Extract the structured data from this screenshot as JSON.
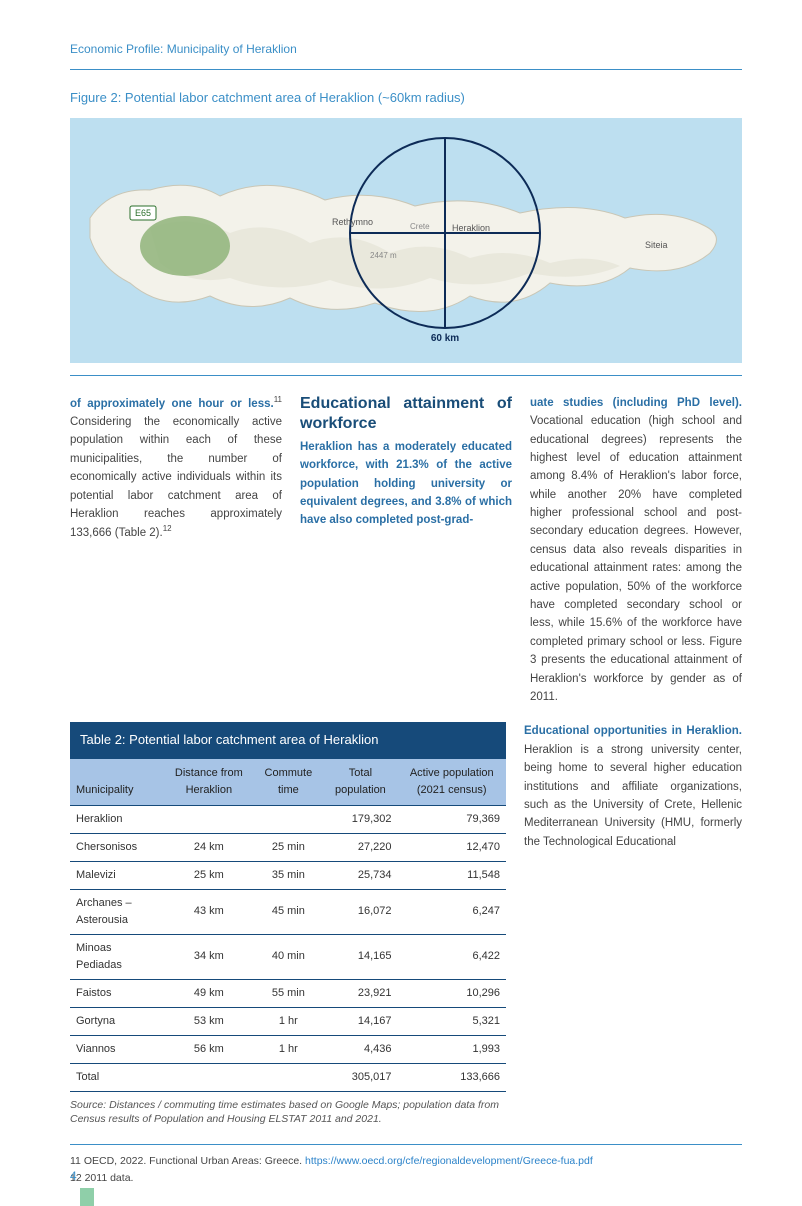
{
  "header": {
    "title": "Economic Profile: Municipality of Heraklion"
  },
  "figure": {
    "title": "Figure 2: Potential labor catchment area of Heraklion (~60km radius)",
    "map": {
      "background_color": "#bddff0",
      "land_color": "#f3f2ea",
      "land_stroke": "#c9c6b5",
      "mountain_color": "#d8dccd",
      "park_color": "#8fb47a",
      "ring_stroke": "#0d2b57",
      "labels": {
        "rethymno": "Rethymno",
        "heraklion": "Heraklion",
        "sitia": "Siteia",
        "crete": "Crete",
        "km": "60 km",
        "elev": "2447 m",
        "road": "E65"
      }
    }
  },
  "text": {
    "col1_lead": "of approximately one hour or less.",
    "col1_sup": "11",
    "col1_body": " Considering the economically active population within each of these municipalities, the number of economically active individuals within its potential labor catchment area of Heraklion reaches approximately 133,666 (Table 2).",
    "col1_sup2": "12",
    "col2_heading": "Educational attainment of workforce",
    "col2_lead": "Heraklion has a moderately educated workforce, with 21.3% of the active population holding university or equivalent degrees, and 3.8% of which have also completed post-grad-",
    "col3_lead": "uate studies (including PhD level).",
    "col3_body": " Vocational education (high school and educational degrees) represents the highest level of education attainment among 8.4% of Heraklion's labor force, while another 20% have completed higher professional school and post-secondary education degrees. However, census data also reveals disparities in educational attainment rates: among the active population, 50% of the workforce have completed secondary school or less, while 15.6% of the workforce have completed primary school or less. Figure 3 presents the educational attainment of Heraklion's workforce by gender as of 2011.",
    "col3_subhead": "Educational opportunities in Heraklion.",
    "col3_body2": " Heraklion is a strong university center, being home to several higher education institutions and affiliate organizations, such as the University of Crete, Hellenic Mediterranean University (HMU, formerly the Technological Educational"
  },
  "table": {
    "title": "Table 2: Potential labor catchment area of Heraklion",
    "columns": [
      "Municipality",
      "Distance from Heraklion",
      "Commute time",
      "Total population",
      "Active population (2021 census)"
    ],
    "rows": [
      [
        "Heraklion",
        "",
        "",
        "179,302",
        "79,369"
      ],
      [
        "Chersonisos",
        "24 km",
        "25 min",
        "27,220",
        "12,470"
      ],
      [
        "Malevizi",
        "25 km",
        "35 min",
        "25,734",
        "11,548"
      ],
      [
        "Archanes – Asterousia",
        "43 km",
        "45 min",
        "16,072",
        "6,247"
      ],
      [
        "Minoas Pediadas",
        "34 km",
        "40 min",
        "14,165",
        "6,422"
      ],
      [
        "Faistos",
        "49 km",
        "55 min",
        "23,921",
        "10,296"
      ],
      [
        "Gortyna",
        "53 km",
        "1 hr",
        "14,167",
        "5,321"
      ],
      [
        "Viannos",
        "56 km",
        "1 hr",
        "4,436",
        "1,993"
      ],
      [
        "Total",
        "",
        "",
        "305,017",
        "133,666"
      ]
    ],
    "source_label": "Source:",
    "source_text": " Distances / commuting time estimates based on Google Maps; population data from Census results of Population and Housing ELSTAT 2011 and 2021.",
    "header_bg": "#a7c4e6",
    "title_bg": "#164a7a",
    "border_color": "#164a7a"
  },
  "footnotes": {
    "fn11_text": "11 OECD, 2022. Functional Urban Areas: Greece. ",
    "fn11_link": "https://www.oecd.org/cfe/regionaldevelopment/Greece-fua.pdf",
    "fn12": "12 2011 data."
  },
  "page_number": "4"
}
